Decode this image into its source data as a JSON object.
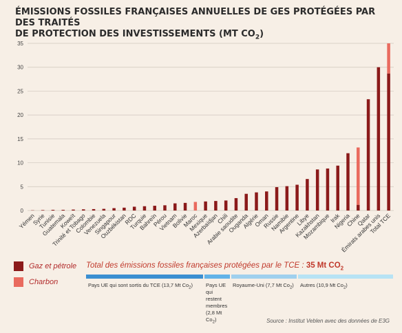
{
  "title": {
    "line1": "ÉMISSIONS FOSSILES FRANÇAISES ANNUELLES DE GES PROTÉGÉES PAR DES TRAITÉS",
    "line2": "DE PROTECTION DES INVESTISSEMENTS (MT CO",
    "line2_sub": "2",
    "line2_end": ")"
  },
  "colors": {
    "oil_gas": "#8b1a1a",
    "coal": "#e96a5e",
    "grid": "#cfc6bd",
    "axis_text": "#444444",
    "group_blue": "#3b8fd1",
    "group_mid": "#62b3e8",
    "group_light": "#9fd0ee",
    "group_pale": "#b7e3f4"
  },
  "chart_data": {
    "type": "bar",
    "stacked": true,
    "ylim": [
      0,
      35
    ],
    "yticks": [
      0,
      5,
      10,
      15,
      20,
      25,
      30,
      35
    ],
    "grid": true,
    "categories": [
      "Yémen",
      "Syrie",
      "Tunisie",
      "Guatemala",
      "Koweït",
      "Trinité et Tobago",
      "Colombie",
      "Venezuela",
      "Singapour",
      "Ouzbékistan",
      "RDC",
      "Turquie",
      "Bahreïn",
      "Pérou",
      "Vietnam",
      "Bolivie",
      "Maroc",
      "Mexique",
      "Azerbaïdjan",
      "Chili",
      "Arabie saoudite",
      "Ouganda",
      "Algérie",
      "Oman",
      "Russie",
      "Namibie",
      "Argentine",
      "Libye",
      "Kazakhstan",
      "Mozambique",
      "Irak",
      "Nigeria",
      "Chine",
      "Qatar",
      "Émirats arabes unis",
      "Total TCE"
    ],
    "series": [
      {
        "name": "Gaz et pétrole",
        "values": [
          0.05,
          0.1,
          0.15,
          0.15,
          0.2,
          0.25,
          0.3,
          0.35,
          0.5,
          0.6,
          0.8,
          0.9,
          1.0,
          1.1,
          1.5,
          1.6,
          0,
          1.9,
          2.0,
          2.1,
          2.6,
          3.5,
          3.8,
          4.0,
          4.9,
          5.1,
          5.4,
          6.6,
          8.6,
          8.8,
          9.4,
          12.0,
          1.2,
          23.3,
          30.0,
          28.7
        ]
      },
      {
        "name": "Charbon",
        "values": [
          0,
          0,
          0,
          0,
          0,
          0,
          0,
          0,
          0,
          0,
          0,
          0,
          0,
          0,
          0,
          0,
          1.8,
          0,
          0,
          0,
          0,
          0,
          0,
          0,
          0,
          0,
          0,
          0,
          0,
          0,
          0,
          0,
          12.0,
          0,
          0,
          6.3
        ]
      }
    ]
  },
  "legend": {
    "oil_gas": "Gaz et pétrole",
    "coal": "Charbon"
  },
  "total": {
    "label": "Total des émissions fossiles françaises protégées par le TCE : ",
    "value": "35 Mt CO",
    "value_sub": "2"
  },
  "groups": [
    {
      "text": "Pays UE qui sont sortis du TCE (13,7 Mt Co",
      "sub": "2",
      "end": ")"
    },
    {
      "text": "Pays UE qui restent membres (2,8 Mt Co",
      "sub": "2",
      "end": ")"
    },
    {
      "text": "Royaume-Uni (7,7 Mt Co",
      "sub": "2",
      "end": ")"
    },
    {
      "text": "Autres (10,9 Mt Co",
      "sub": "2",
      "end": ")"
    }
  ],
  "source": "Source : Institut Veblen avec des données de E3G"
}
